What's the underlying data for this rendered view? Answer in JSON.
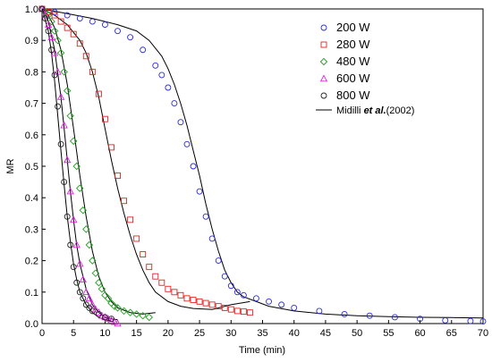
{
  "chart_data": {
    "type": "scatter",
    "xlabel": "Time (min)",
    "ylabel": "MR",
    "xlim": [
      0,
      70
    ],
    "ylim": [
      0,
      1.0
    ],
    "xticks": [
      0,
      5,
      10,
      15,
      20,
      25,
      30,
      35,
      40,
      45,
      50,
      55,
      60,
      65,
      70
    ],
    "yticks": [
      0.0,
      0.1,
      0.2,
      0.3,
      0.4,
      0.5,
      0.6,
      0.7,
      0.8,
      0.9,
      1.0
    ],
    "grid": false,
    "legend_position": "top-right",
    "series": [
      {
        "name": "200 W",
        "marker": "circle",
        "color": "#2b2bd6",
        "points": [
          [
            0,
            1.0
          ],
          [
            2,
            0.99
          ],
          [
            4,
            0.98
          ],
          [
            6,
            0.97
          ],
          [
            8,
            0.96
          ],
          [
            10,
            0.95
          ],
          [
            12,
            0.93
          ],
          [
            14,
            0.91
          ],
          [
            16,
            0.87
          ],
          [
            18,
            0.82
          ],
          [
            19,
            0.79
          ],
          [
            20,
            0.75
          ],
          [
            21,
            0.7
          ],
          [
            22,
            0.64
          ],
          [
            23,
            0.57
          ],
          [
            24,
            0.5
          ],
          [
            25,
            0.42
          ],
          [
            26,
            0.34
          ],
          [
            27,
            0.27
          ],
          [
            28,
            0.2
          ],
          [
            29,
            0.15
          ],
          [
            30,
            0.12
          ],
          [
            31,
            0.1
          ],
          [
            32,
            0.09
          ],
          [
            34,
            0.08
          ],
          [
            36,
            0.07
          ],
          [
            38,
            0.06
          ],
          [
            40,
            0.05
          ],
          [
            44,
            0.04
          ],
          [
            48,
            0.03
          ],
          [
            52,
            0.025
          ],
          [
            56,
            0.02
          ],
          [
            60,
            0.015
          ],
          [
            64,
            0.01
          ],
          [
            68,
            0.008
          ],
          [
            70,
            0.007
          ]
        ]
      },
      {
        "name": "280 W",
        "marker": "square",
        "color": "#e02424",
        "points": [
          [
            0,
            1.0
          ],
          [
            1,
            0.99
          ],
          [
            2,
            0.98
          ],
          [
            3,
            0.96
          ],
          [
            4,
            0.94
          ],
          [
            5,
            0.92
          ],
          [
            6,
            0.89
          ],
          [
            7,
            0.85
          ],
          [
            8,
            0.8
          ],
          [
            9,
            0.73
          ],
          [
            10,
            0.65
          ],
          [
            11,
            0.56
          ],
          [
            12,
            0.47
          ],
          [
            13,
            0.39
          ],
          [
            14,
            0.33
          ],
          [
            15,
            0.27
          ],
          [
            16,
            0.22
          ],
          [
            17,
            0.18
          ],
          [
            18,
            0.15
          ],
          [
            19,
            0.13
          ],
          [
            20,
            0.11
          ],
          [
            21,
            0.1
          ],
          [
            22,
            0.09
          ],
          [
            23,
            0.08
          ],
          [
            24,
            0.075
          ],
          [
            25,
            0.07
          ],
          [
            26,
            0.065
          ],
          [
            27,
            0.06
          ],
          [
            28,
            0.055
          ],
          [
            29,
            0.05
          ],
          [
            30,
            0.045
          ],
          [
            31,
            0.04
          ],
          [
            32,
            0.038
          ],
          [
            33,
            0.035
          ]
        ]
      },
      {
        "name": "480 W",
        "marker": "diamond",
        "color": "#22a022",
        "points": [
          [
            0,
            1.0
          ],
          [
            0.5,
            0.99
          ],
          [
            1,
            0.98
          ],
          [
            1.5,
            0.96
          ],
          [
            2,
            0.93
          ],
          [
            2.5,
            0.9
          ],
          [
            3,
            0.86
          ],
          [
            3.5,
            0.8
          ],
          [
            4,
            0.74
          ],
          [
            4.5,
            0.66
          ],
          [
            5,
            0.58
          ],
          [
            5.5,
            0.5
          ],
          [
            6,
            0.43
          ],
          [
            6.5,
            0.36
          ],
          [
            7,
            0.3
          ],
          [
            7.5,
            0.25
          ],
          [
            8,
            0.2
          ],
          [
            8.5,
            0.16
          ],
          [
            9,
            0.13
          ],
          [
            9.5,
            0.11
          ],
          [
            10,
            0.09
          ],
          [
            10.5,
            0.08
          ],
          [
            11,
            0.065
          ],
          [
            11.5,
            0.055
          ],
          [
            12,
            0.05
          ],
          [
            13,
            0.04
          ],
          [
            14,
            0.035
          ],
          [
            15,
            0.03
          ],
          [
            16,
            0.025
          ],
          [
            17,
            0.02
          ]
        ]
      },
      {
        "name": "600 W",
        "marker": "triangle",
        "color": "#e020e0",
        "points": [
          [
            0,
            1.0
          ],
          [
            0.5,
            0.98
          ],
          [
            1,
            0.95
          ],
          [
            1.5,
            0.91
          ],
          [
            2,
            0.86
          ],
          [
            2.5,
            0.8
          ],
          [
            3,
            0.72
          ],
          [
            3.5,
            0.63
          ],
          [
            4,
            0.52
          ],
          [
            4.5,
            0.42
          ],
          [
            5,
            0.33
          ],
          [
            5.5,
            0.25
          ],
          [
            6,
            0.19
          ],
          [
            6.5,
            0.14
          ],
          [
            7,
            0.1
          ],
          [
            7.5,
            0.08
          ],
          [
            8,
            0.06
          ],
          [
            8.5,
            0.045
          ],
          [
            9,
            0.035
          ],
          [
            9.5,
            0.025
          ],
          [
            10,
            0.02
          ],
          [
            10.5,
            0.015
          ],
          [
            11,
            0.01
          ],
          [
            11.5,
            0.005
          ],
          [
            12,
            0.0
          ]
        ]
      },
      {
        "name": "800 W",
        "marker": "circle",
        "color": "#222222",
        "points": [
          [
            0,
            1.0
          ],
          [
            0.5,
            0.97
          ],
          [
            1,
            0.93
          ],
          [
            1.5,
            0.87
          ],
          [
            2,
            0.79
          ],
          [
            2.5,
            0.69
          ],
          [
            3,
            0.57
          ],
          [
            3.5,
            0.45
          ],
          [
            4,
            0.34
          ],
          [
            4.5,
            0.25
          ],
          [
            5,
            0.18
          ],
          [
            5.5,
            0.13
          ],
          [
            6,
            0.1
          ],
          [
            6.5,
            0.08
          ],
          [
            7,
            0.06
          ],
          [
            7.5,
            0.05
          ],
          [
            8,
            0.04
          ],
          [
            9,
            0.03
          ],
          [
            10,
            0.02
          ],
          [
            11,
            0.015
          ]
        ]
      }
    ],
    "model": {
      "name_prefix": "Midilli ",
      "name_italic": "et al.",
      "name_suffix": "(2002)",
      "color": "#000000",
      "curves": [
        {
          "points": [
            [
              0,
              1.0
            ],
            [
              4,
              0.985
            ],
            [
              8,
              0.97
            ],
            [
              12,
              0.95
            ],
            [
              15,
              0.93
            ],
            [
              17,
              0.9
            ],
            [
              19,
              0.85
            ],
            [
              20,
              0.81
            ],
            [
              21,
              0.76
            ],
            [
              22,
              0.7
            ],
            [
              23,
              0.63
            ],
            [
              24,
              0.55
            ],
            [
              25,
              0.47
            ],
            [
              26,
              0.38
            ],
            [
              27,
              0.3
            ],
            [
              28,
              0.23
            ],
            [
              29,
              0.17
            ],
            [
              30,
              0.13
            ],
            [
              31,
              0.1
            ],
            [
              32,
              0.085
            ],
            [
              34,
              0.07
            ],
            [
              36,
              0.055
            ],
            [
              40,
              0.04
            ],
            [
              45,
              0.03
            ],
            [
              50,
              0.025
            ],
            [
              55,
              0.022
            ],
            [
              60,
              0.02
            ],
            [
              65,
              0.019
            ],
            [
              70,
              0.018
            ]
          ]
        },
        {
          "points": [
            [
              0,
              1.0
            ],
            [
              2,
              0.98
            ],
            [
              4,
              0.95
            ],
            [
              6,
              0.9
            ],
            [
              7,
              0.86
            ],
            [
              8,
              0.8
            ],
            [
              9,
              0.72
            ],
            [
              10,
              0.62
            ],
            [
              11,
              0.52
            ],
            [
              12,
              0.43
            ],
            [
              13,
              0.35
            ],
            [
              14,
              0.28
            ],
            [
              15,
              0.22
            ],
            [
              16,
              0.17
            ],
            [
              17,
              0.13
            ],
            [
              18,
              0.1
            ],
            [
              20,
              0.07
            ],
            [
              22,
              0.055
            ],
            [
              24,
              0.048
            ],
            [
              27,
              0.045
            ],
            [
              30,
              0.06
            ],
            [
              33,
              0.07
            ]
          ]
        },
        {
          "points": [
            [
              0,
              1.0
            ],
            [
              1,
              0.98
            ],
            [
              2,
              0.94
            ],
            [
              3,
              0.87
            ],
            [
              4,
              0.76
            ],
            [
              5,
              0.62
            ],
            [
              6,
              0.47
            ],
            [
              7,
              0.34
            ],
            [
              8,
              0.23
            ],
            [
              9,
              0.15
            ],
            [
              10,
              0.1
            ],
            [
              11,
              0.07
            ],
            [
              12,
              0.05
            ],
            [
              14,
              0.035
            ],
            [
              16,
              0.03
            ],
            [
              18,
              0.035
            ]
          ]
        },
        {
          "points": [
            [
              0,
              1.0
            ],
            [
              1,
              0.96
            ],
            [
              2,
              0.87
            ],
            [
              3,
              0.72
            ],
            [
              3.5,
              0.62
            ],
            [
              4,
              0.52
            ],
            [
              4.5,
              0.42
            ],
            [
              5,
              0.33
            ],
            [
              5.5,
              0.25
            ],
            [
              6,
              0.19
            ],
            [
              7,
              0.11
            ],
            [
              8,
              0.06
            ],
            [
              9,
              0.035
            ],
            [
              10,
              0.02
            ],
            [
              11,
              0.015
            ],
            [
              12,
              0.012
            ]
          ]
        },
        {
          "points": [
            [
              0,
              1.0
            ],
            [
              1,
              0.93
            ],
            [
              1.5,
              0.86
            ],
            [
              2,
              0.77
            ],
            [
              2.5,
              0.66
            ],
            [
              3,
              0.55
            ],
            [
              3.5,
              0.44
            ],
            [
              4,
              0.34
            ],
            [
              4.5,
              0.26
            ],
            [
              5,
              0.19
            ],
            [
              5.5,
              0.14
            ],
            [
              6,
              0.1
            ],
            [
              7,
              0.06
            ],
            [
              8,
              0.035
            ],
            [
              9,
              0.02
            ],
            [
              10,
              0.012
            ],
            [
              11,
              0.008
            ]
          ]
        }
      ]
    }
  }
}
